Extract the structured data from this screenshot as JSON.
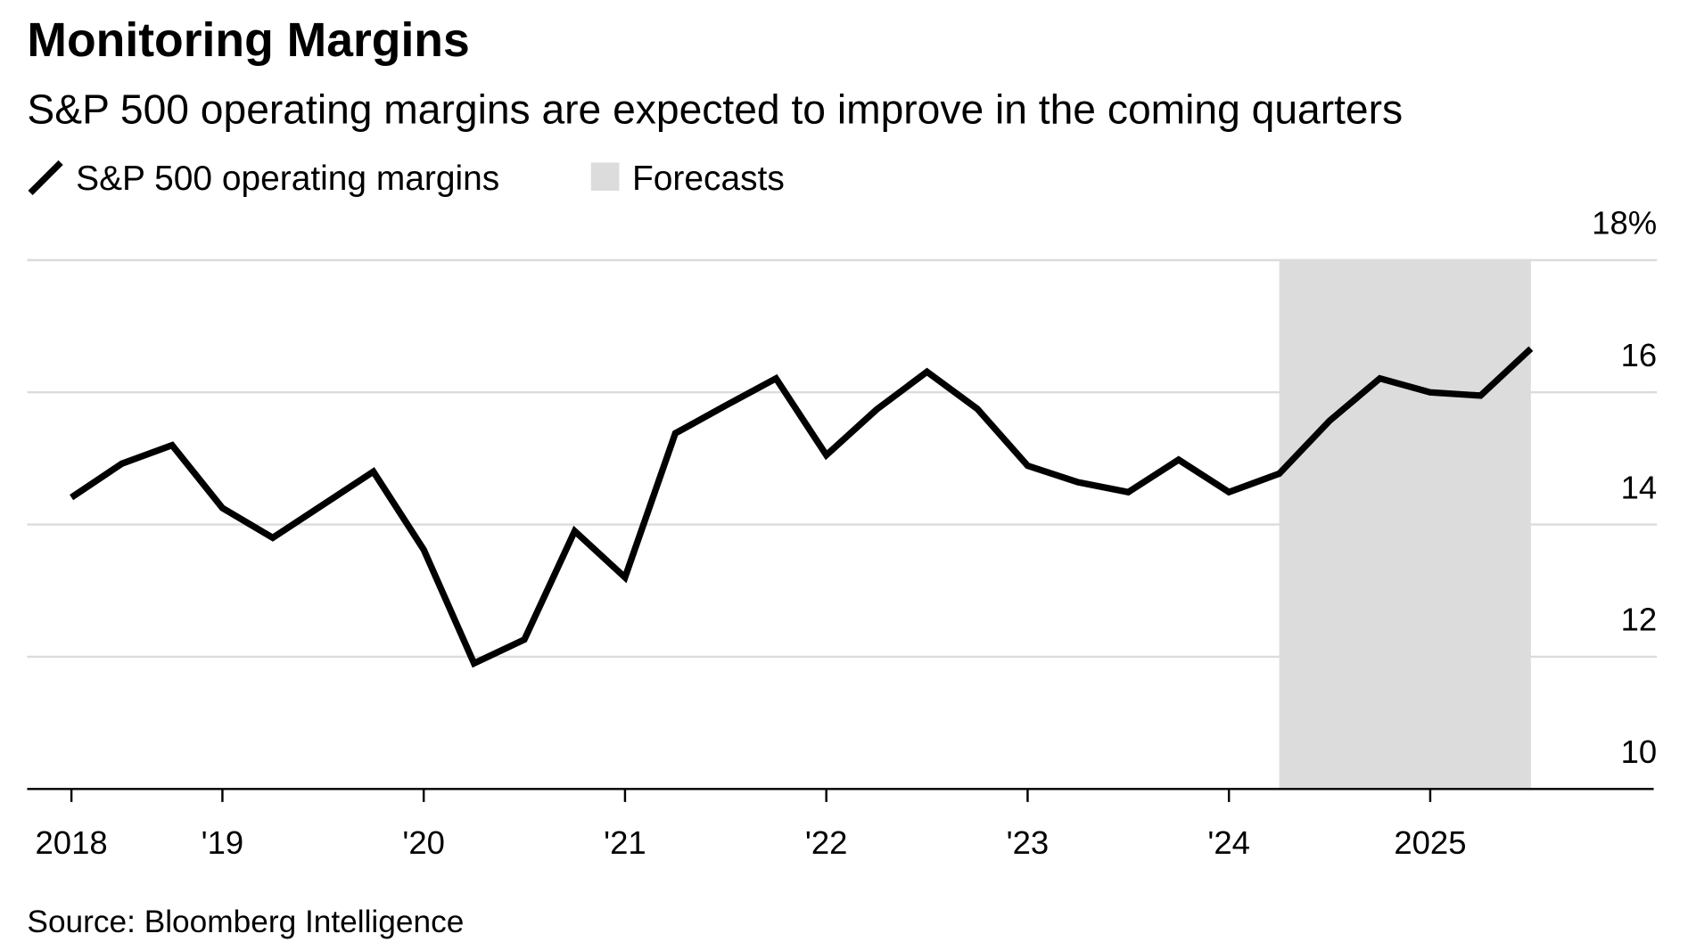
{
  "chart_data": {
    "type": "line",
    "title": "Monitoring Margins",
    "subtitle": "S&P 500 operating margins are expected to improve in the coming quarters",
    "source": "Source: Bloomberg Intelligence",
    "x": [
      2018.25,
      2018.5,
      2018.75,
      2019,
      2019.25,
      2019.5,
      2019.75,
      2020,
      2020.25,
      2020.5,
      2020.75,
      2021,
      2021.25,
      2021.5,
      2021.75,
      2022,
      2022.25,
      2022.5,
      2022.75,
      2023,
      2023.25,
      2023.5,
      2023.75,
      2024,
      2024.25,
      2024.5,
      2024.75,
      2025,
      2025.25,
      2025.5
    ],
    "series": [
      {
        "name": "S&P 500 operating margins",
        "color": "#000000",
        "values": [
          14.41,
          14.92,
          15.2,
          14.25,
          13.8,
          14.3,
          14.8,
          13.62,
          11.9,
          12.26,
          13.9,
          13.2,
          15.38,
          15.8,
          16.21,
          15.05,
          15.74,
          16.31,
          15.75,
          14.89,
          14.64,
          14.49,
          14.98,
          14.49,
          14.77,
          15.57,
          16.21,
          16.0,
          15.95,
          16.66
        ]
      }
    ],
    "forecast": {
      "name": "Forecasts",
      "range": [
        2024.25,
        2025.5
      ],
      "color": "#dcdcdc"
    },
    "xlim": [
      2018.03,
      2026.11
    ],
    "xticks": [
      {
        "value": 2018.25,
        "label": "2018"
      },
      {
        "value": 2019,
        "label": "'19"
      },
      {
        "value": 2020,
        "label": "'20"
      },
      {
        "value": 2021,
        "label": "'21"
      },
      {
        "value": 2022,
        "label": "'22"
      },
      {
        "value": 2023,
        "label": "'23"
      },
      {
        "value": 2024,
        "label": "'24"
      },
      2025
    ],
    "ylim": [
      10,
      18
    ],
    "yticks": [
      10,
      12,
      14,
      16,
      {
        "value": 18,
        "label": "18%"
      }
    ],
    "grid": true
  }
}
